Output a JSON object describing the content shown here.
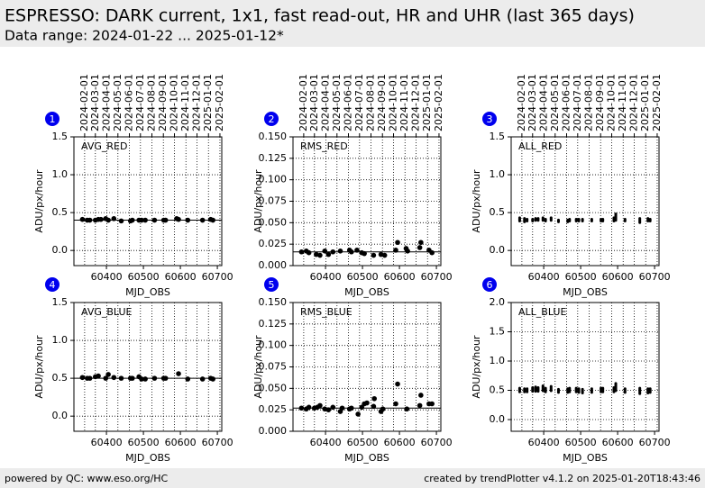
{
  "header": {
    "title": "ESPRESSO: DARK current, 1x1, fast read-out, HR and UHR (last 365 days)",
    "subtitle": "Data range: 2024-01-22 ... 2025-01-12*"
  },
  "footer": {
    "left": "powered by QC: www.eso.org/HC",
    "right": "created by trendPlotter v4.1.2 on 2025-01-20T18:43:46"
  },
  "chart_data": [
    {
      "type": "scatter",
      "label": "1",
      "title": "AVG_RED",
      "x_label": "MJD_OBS",
      "y_label": "ADU/px/hour",
      "color": "#000000",
      "xlim": [
        60312,
        60712
      ],
      "xticks": [
        60400,
        60500,
        60600,
        60700
      ],
      "ylim": [
        -0.2,
        1.5
      ],
      "yticks": [
        {
          "value": 0,
          "label": "0.0"
        },
        {
          "value": 0.5,
          "label": "0.5"
        },
        {
          "value": 1,
          "label": "1.0"
        },
        1.5
      ],
      "ref_line": 0.4,
      "date_ticks": [
        {
          "value": 60341,
          "label": "2024-02-01"
        },
        {
          "value": 60370,
          "label": "2024-03-01"
        },
        {
          "value": 60401,
          "label": "2024-04-01"
        },
        {
          "value": 60431,
          "label": "2024-05-01"
        },
        {
          "value": 60462,
          "label": "2024-06-01"
        },
        {
          "value": 60492,
          "label": "2024-07-01"
        },
        {
          "value": 60523,
          "label": "2024-08-01"
        },
        {
          "value": 60554,
          "label": "2024-09-01"
        },
        {
          "value": 60584,
          "label": "2024-10-01"
        },
        {
          "value": 60615,
          "label": "2024-11-01"
        },
        {
          "value": 60645,
          "label": "2024-12-01"
        },
        {
          "value": 60676,
          "label": "2025-01-01"
        },
        {
          "value": 60707,
          "label": "2025-02-01"
        }
      ],
      "x": [
        60335,
        60348,
        60355,
        60370,
        60378,
        60385,
        60398,
        60405,
        60420,
        60440,
        60465,
        60470,
        60488,
        60495,
        60505,
        60530,
        60555,
        60560,
        60590,
        60595,
        60620,
        60660,
        60682,
        60688
      ],
      "values": [
        0.41,
        0.4,
        0.4,
        0.4,
        0.41,
        0.41,
        0.42,
        0.4,
        0.42,
        0.39,
        0.39,
        0.4,
        0.4,
        0.4,
        0.4,
        0.4,
        0.4,
        0.4,
        0.42,
        0.41,
        0.4,
        0.4,
        0.41,
        0.4
      ]
    },
    {
      "type": "scatter",
      "label": "2",
      "title": "RMS_RED",
      "x_label": "MJD_OBS",
      "y_label": "ADU/px/hour",
      "color": "#000000",
      "xlim": [
        60312,
        60712
      ],
      "xticks": [
        60400,
        60500,
        60600,
        60700
      ],
      "ylim": [
        0,
        0.15
      ],
      "yticks": [
        {
          "value": 0,
          "label": "0.000"
        },
        0.025,
        {
          "value": 0.05,
          "label": "0.050"
        },
        0.075,
        {
          "value": 0.1,
          "label": "0.100"
        },
        0.125,
        {
          "value": 0.15,
          "label": "0.150"
        }
      ],
      "ref_line": 0.016,
      "date_ticks": [
        {
          "value": 60341,
          "label": "2024-02-01"
        },
        {
          "value": 60370,
          "label": "2024-03-01"
        },
        {
          "value": 60401,
          "label": "2024-04-01"
        },
        {
          "value": 60431,
          "label": "2024-05-01"
        },
        {
          "value": 60462,
          "label": "2024-06-01"
        },
        {
          "value": 60492,
          "label": "2024-07-01"
        },
        {
          "value": 60523,
          "label": "2024-08-01"
        },
        {
          "value": 60554,
          "label": "2024-09-01"
        },
        {
          "value": 60584,
          "label": "2024-10-01"
        },
        {
          "value": 60615,
          "label": "2024-11-01"
        },
        {
          "value": 60645,
          "label": "2024-12-01"
        },
        {
          "value": 60676,
          "label": "2025-01-01"
        },
        {
          "value": 60707,
          "label": "2025-02-01"
        }
      ],
      "x": [
        60335,
        60348,
        60355,
        60375,
        60385,
        60398,
        60408,
        60420,
        60440,
        60465,
        60470,
        60485,
        60498,
        60505,
        60530,
        60550,
        60560,
        60590,
        60595,
        60618,
        60622,
        60655,
        60658,
        60680,
        60688
      ],
      "values": [
        0.016,
        0.017,
        0.015,
        0.013,
        0.012,
        0.017,
        0.013,
        0.016,
        0.017,
        0.018,
        0.016,
        0.018,
        0.015,
        0.014,
        0.012,
        0.013,
        0.012,
        0.018,
        0.027,
        0.02,
        0.017,
        0.021,
        0.027,
        0.018,
        0.015
      ]
    },
    {
      "type": "range",
      "label": "3",
      "title": "ALL_RED",
      "x_label": "MJD_OBS",
      "y_label": "ADU/px/hour",
      "color": "#000000",
      "xlim": [
        60312,
        60712
      ],
      "xticks": [
        60400,
        60500,
        60600,
        60700
      ],
      "ylim": [
        -0.2,
        1.5
      ],
      "yticks": [
        {
          "value": 0,
          "label": "0.0"
        },
        {
          "value": 0.5,
          "label": "0.5"
        },
        {
          "value": 1,
          "label": "1.0"
        },
        1.5
      ],
      "date_ticks": [
        {
          "value": 60341,
          "label": "2024-02-01"
        },
        {
          "value": 60370,
          "label": "2024-03-01"
        },
        {
          "value": 60401,
          "label": "2024-04-01"
        },
        {
          "value": 60431,
          "label": "2024-05-01"
        },
        {
          "value": 60462,
          "label": "2024-06-01"
        },
        {
          "value": 60492,
          "label": "2024-07-01"
        },
        {
          "value": 60523,
          "label": "2024-08-01"
        },
        {
          "value": 60554,
          "label": "2024-09-01"
        },
        {
          "value": 60584,
          "label": "2024-10-01"
        },
        {
          "value": 60615,
          "label": "2024-11-01"
        },
        {
          "value": 60645,
          "label": "2024-12-01"
        },
        {
          "value": 60676,
          "label": "2025-01-01"
        },
        {
          "value": 60707,
          "label": "2025-02-01"
        }
      ],
      "x": [
        60335,
        60348,
        60355,
        60370,
        60378,
        60385,
        60398,
        60405,
        60420,
        60440,
        60465,
        60470,
        60488,
        60495,
        60505,
        60530,
        60555,
        60560,
        60590,
        60595,
        60620,
        60660,
        60682,
        60688
      ],
      "lows": [
        0.37,
        0.36,
        0.37,
        0.37,
        0.38,
        0.38,
        0.38,
        0.37,
        0.38,
        0.36,
        0.36,
        0.37,
        0.37,
        0.37,
        0.37,
        0.37,
        0.37,
        0.37,
        0.37,
        0.38,
        0.37,
        0.35,
        0.37,
        0.37
      ],
      "highs": [
        0.45,
        0.44,
        0.43,
        0.43,
        0.44,
        0.44,
        0.45,
        0.43,
        0.45,
        0.42,
        0.42,
        0.43,
        0.43,
        0.43,
        0.43,
        0.43,
        0.43,
        0.43,
        0.45,
        0.5,
        0.43,
        0.44,
        0.44,
        0.43
      ]
    },
    {
      "type": "scatter",
      "label": "4",
      "title": "AVG_BLUE",
      "x_label": "MJD_OBS",
      "y_label": "ADU/px/hour",
      "color": "#000000",
      "xlim": [
        60312,
        60712
      ],
      "xticks": [
        60400,
        60500,
        60600,
        60700
      ],
      "ylim": [
        -0.2,
        1.5
      ],
      "yticks": [
        {
          "value": 0,
          "label": "0.0"
        },
        {
          "value": 0.5,
          "label": "0.5"
        },
        {
          "value": 1,
          "label": "1.0"
        },
        1.5
      ],
      "ref_line": 0.5,
      "x": [
        60335,
        60348,
        60355,
        60370,
        60378,
        60398,
        60405,
        60420,
        60440,
        60465,
        60470,
        60488,
        60495,
        60505,
        60530,
        60555,
        60560,
        60595,
        60620,
        60660,
        60682,
        60688
      ],
      "values": [
        0.51,
        0.5,
        0.5,
        0.52,
        0.53,
        0.5,
        0.55,
        0.51,
        0.5,
        0.5,
        0.5,
        0.52,
        0.49,
        0.49,
        0.5,
        0.5,
        0.5,
        0.56,
        0.49,
        0.49,
        0.5,
        0.49
      ]
    },
    {
      "type": "scatter",
      "label": "5",
      "title": "RMS_BLUE",
      "x_label": "MJD_OBS",
      "y_label": "ADU/px/hour",
      "color": "#000000",
      "xlim": [
        60312,
        60712
      ],
      "xticks": [
        60400,
        60500,
        60600,
        60700
      ],
      "ylim": [
        0,
        0.15
      ],
      "yticks": [
        {
          "value": 0,
          "label": "0.000"
        },
        0.025,
        {
          "value": 0.05,
          "label": "0.050"
        },
        0.075,
        {
          "value": 0.1,
          "label": "0.100"
        },
        0.125,
        {
          "value": 0.15,
          "label": "0.150"
        }
      ],
      "ref_line": 0.027,
      "x": [
        60335,
        60348,
        60355,
        60370,
        60378,
        60385,
        60398,
        60408,
        60420,
        60440,
        60445,
        60465,
        60470,
        60488,
        60498,
        60505,
        60512,
        60530,
        60532,
        60550,
        60555,
        60590,
        60595,
        60620,
        60655,
        60658,
        60680,
        60688
      ],
      "values": [
        0.027,
        0.026,
        0.028,
        0.027,
        0.028,
        0.03,
        0.026,
        0.025,
        0.028,
        0.023,
        0.027,
        0.026,
        0.027,
        0.02,
        0.028,
        0.032,
        0.033,
        0.029,
        0.038,
        0.023,
        0.026,
        0.032,
        0.055,
        0.026,
        0.03,
        0.042,
        0.032,
        0.032
      ]
    },
    {
      "type": "range",
      "label": "6",
      "title": "ALL_BLUE",
      "x_label": "MJD_OBS",
      "y_label": "ADU/px/hour",
      "color": "#000000",
      "xlim": [
        60312,
        60712
      ],
      "xticks": [
        60400,
        60500,
        60600,
        60700
      ],
      "ylim": [
        -0.2,
        2
      ],
      "yticks": [
        {
          "value": 0,
          "label": "0.0"
        },
        {
          "value": 0.5,
          "label": "0.5"
        },
        {
          "value": 1,
          "label": "1.0"
        },
        1.5,
        {
          "value": 2,
          "label": "2.0"
        }
      ],
      "x": [
        60335,
        60348,
        60355,
        60370,
        60378,
        60385,
        60398,
        60405,
        60420,
        60440,
        60465,
        60470,
        60488,
        60495,
        60505,
        60530,
        60555,
        60560,
        60590,
        60595,
        60620,
        60660,
        60682,
        60688
      ],
      "lows": [
        0.45,
        0.45,
        0.45,
        0.46,
        0.46,
        0.46,
        0.47,
        0.45,
        0.47,
        0.44,
        0.44,
        0.45,
        0.45,
        0.44,
        0.43,
        0.44,
        0.45,
        0.45,
        0.45,
        0.47,
        0.44,
        0.42,
        0.43,
        0.44
      ],
      "highs": [
        0.56,
        0.55,
        0.55,
        0.57,
        0.58,
        0.57,
        0.6,
        0.56,
        0.59,
        0.54,
        0.55,
        0.56,
        0.56,
        0.55,
        0.54,
        0.55,
        0.56,
        0.56,
        0.57,
        0.64,
        0.55,
        0.56,
        0.55,
        0.55
      ]
    }
  ]
}
